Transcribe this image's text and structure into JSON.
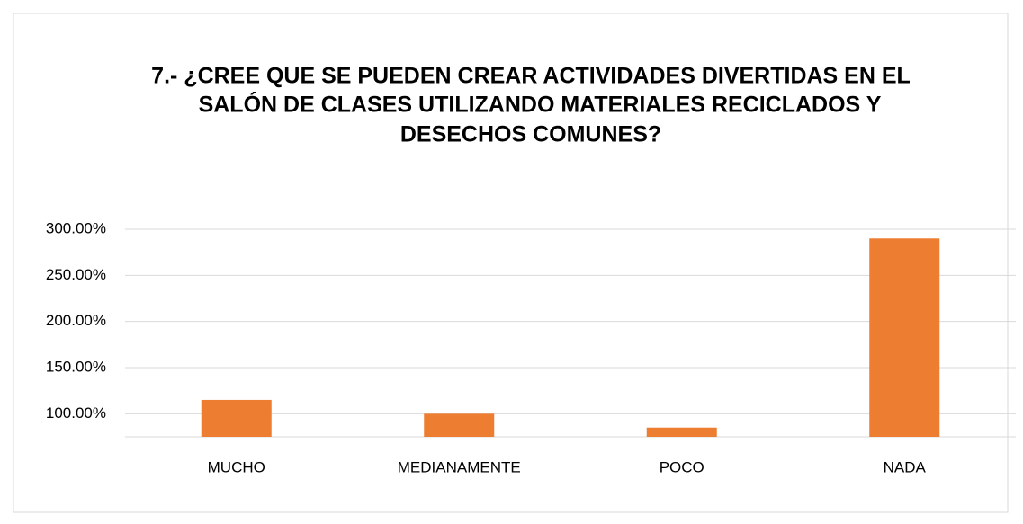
{
  "chart_data": {
    "type": "bar",
    "title": [
      "7.- ¿CREE QUE SE PUEDEN CREAR ACTIVIDADES DIVERTIDAS EN EL",
      "SALÓN DE  CLASES UTILIZANDO MATERIALES RECICLADOS Y",
      "DESECHOS COMUNES?"
    ],
    "categories": [
      "MUCHO",
      "MEDIANAMENTE",
      "POCO",
      "NADA"
    ],
    "values": [
      115,
      100,
      85,
      290
    ],
    "color": "#ed7d31",
    "ylim": [
      75,
      300
    ],
    "yticks": [
      {
        "value": 100,
        "label": "100.00%"
      },
      {
        "value": 150,
        "label": "150.00%"
      },
      {
        "value": 200,
        "label": "200.00%"
      },
      {
        "value": 250,
        "label": "250.00%"
      },
      {
        "value": 300,
        "label": "300.00%"
      }
    ],
    "grid": true
  }
}
